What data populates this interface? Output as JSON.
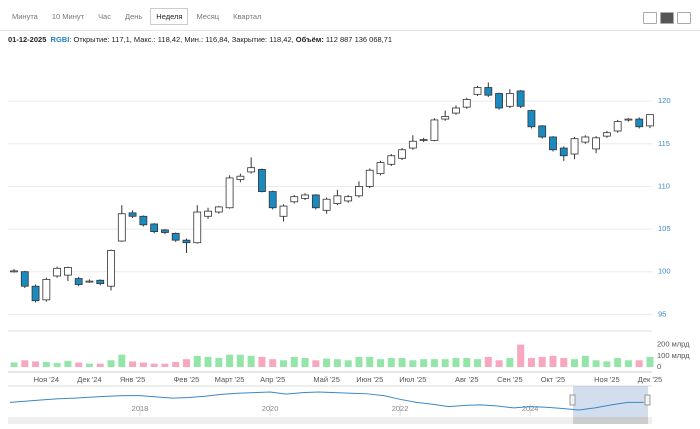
{
  "tabs": [
    {
      "label": "Минута"
    },
    {
      "label": "10 Минут"
    },
    {
      "label": "Час"
    },
    {
      "label": "День"
    },
    {
      "label": "Неделя",
      "active": true
    },
    {
      "label": "Месяц"
    },
    {
      "label": "Квартал"
    }
  ],
  "info": {
    "date": "01-12-2025",
    "ticker": "RGBI",
    "details": ": Открытие: 117,1, Макс.: 118,42, Мин.: 116,84, Закрытие: 118,42, ",
    "volume_label": "Объём:",
    "volume": " 112 887 136 068,71"
  },
  "chart_data": [
    {
      "type": "candlestick",
      "categories": [
        null,
        null,
        null,
        "Ноя '24",
        null,
        null,
        null,
        "Дек '24",
        null,
        null,
        null,
        "Янв '25",
        null,
        null,
        null,
        null,
        "Фев '25",
        null,
        null,
        null,
        "Март '25",
        null,
        null,
        null,
        "Апр '25",
        null,
        null,
        null,
        null,
        "Май '25",
        null,
        null,
        null,
        "Июн '25",
        null,
        null,
        null,
        "Июл '25",
        null,
        null,
        null,
        null,
        "Авг '25",
        null,
        null,
        null,
        "Сен '25",
        null,
        null,
        null,
        "Окт '25",
        null,
        null,
        null,
        null,
        "Ноя '25",
        null,
        null,
        null,
        "Дек '25"
      ],
      "open": [
        100.0,
        100.0,
        98.3,
        96.7,
        99.5,
        99.6,
        99.2,
        98.8,
        99.0,
        98.3,
        103.6,
        106.9,
        106.5,
        105.6,
        104.9,
        104.5,
        103.7,
        103.4,
        106.5,
        107.0,
        107.5,
        110.8,
        111.7,
        112.0,
        109.4,
        106.5,
        108.2,
        108.6,
        109.0,
        107.2,
        108.0,
        108.3,
        108.9,
        110.0,
        111.5,
        112.6,
        113.3,
        114.5,
        115.4,
        115.4,
        117.9,
        118.6,
        119.3,
        120.8,
        121.6,
        120.9,
        119.4,
        121.2,
        118.9,
        117.1,
        115.8,
        114.5,
        113.8,
        115.2,
        114.4,
        115.9,
        116.5,
        117.8,
        117.9,
        117.1
      ],
      "high": [
        100.3,
        100.1,
        98.5,
        99.3,
        100.6,
        100.6,
        99.4,
        99.1,
        99.1,
        102.6,
        107.8,
        107.2,
        106.6,
        105.7,
        105.0,
        104.6,
        103.9,
        107.8,
        107.5,
        107.7,
        111.3,
        111.5,
        113.4,
        112.1,
        109.5,
        107.9,
        109.0,
        109.2,
        109.1,
        108.7,
        109.6,
        109.0,
        110.6,
        112.1,
        113.0,
        113.8,
        114.5,
        116.0,
        115.7,
        118.0,
        118.9,
        119.5,
        120.4,
        121.8,
        122.2,
        121.0,
        121.4,
        121.3,
        119.0,
        117.2,
        115.9,
        114.7,
        115.8,
        116.0,
        115.9,
        116.5,
        117.8,
        118.0,
        118.1,
        118.42
      ],
      "low": [
        99.9,
        98.1,
        96.4,
        96.5,
        99.3,
        98.9,
        98.3,
        98.7,
        98.4,
        97.8,
        103.5,
        106.3,
        105.3,
        104.5,
        104.4,
        103.5,
        102.2,
        103.3,
        106.2,
        106.8,
        107.4,
        110.5,
        111.5,
        109.3,
        107.3,
        105.9,
        108.0,
        108.4,
        107.3,
        106.8,
        107.8,
        108.1,
        108.7,
        109.8,
        111.3,
        112.4,
        113.1,
        114.3,
        115.2,
        115.3,
        117.7,
        118.4,
        119.1,
        120.6,
        120.5,
        119.0,
        119.2,
        119.2,
        116.8,
        115.6,
        114.1,
        113.0,
        113.2,
        115.0,
        113.9,
        115.7,
        116.3,
        117.6,
        116.8,
        116.84
      ],
      "close": [
        100.1,
        98.3,
        96.6,
        99.1,
        100.4,
        100.5,
        98.5,
        98.9,
        98.6,
        102.5,
        106.8,
        106.5,
        105.5,
        104.7,
        104.6,
        103.7,
        103.4,
        107.0,
        107.1,
        107.6,
        111.0,
        111.2,
        112.2,
        109.4,
        107.5,
        107.7,
        108.8,
        109.0,
        107.5,
        108.5,
        108.9,
        108.8,
        110.0,
        111.9,
        112.8,
        113.6,
        114.3,
        115.3,
        115.5,
        117.8,
        118.2,
        119.2,
        120.2,
        121.6,
        120.7,
        119.2,
        120.9,
        119.4,
        117.0,
        115.8,
        114.3,
        113.6,
        115.6,
        115.8,
        115.7,
        116.3,
        117.6,
        117.9,
        117.0,
        118.42
      ],
      "ylim": [
        93.4,
        126
      ],
      "yticks": [
        95,
        100,
        105,
        110,
        115,
        120
      ],
      "grid": true,
      "up_color": "#ffffff",
      "down_color": "#1b8bbf"
    },
    {
      "type": "bar",
      "values": [
        40,
        60,
        50,
        45,
        35,
        55,
        40,
        30,
        30,
        60,
        110,
        50,
        40,
        30,
        30,
        45,
        70,
        100,
        90,
        80,
        110,
        110,
        100,
        90,
        70,
        60,
        90,
        80,
        60,
        75,
        70,
        60,
        90,
        90,
        70,
        80,
        80,
        60,
        70,
        70,
        70,
        80,
        80,
        70,
        90,
        60,
        80,
        200,
        80,
        90,
        100,
        80,
        70,
        100,
        60,
        50,
        80,
        60,
        60,
        90
      ],
      "ylim": [
        0,
        250
      ],
      "yticks": [
        0,
        {
          "value": 100,
          "label": "100 млрд"
        },
        {
          "value": 200,
          "label": "200 млрд"
        }
      ],
      "up_color": "#93e6a8",
      "down_color": "#f7a8be"
    },
    {
      "type": "line",
      "x": [
        2016.0,
        2016.25,
        2016.5,
        2016.75,
        2017.0,
        2017.25,
        2017.5,
        2017.75,
        2018.0,
        2018.25,
        2018.5,
        2018.75,
        2019.0,
        2019.25,
        2019.5,
        2019.75,
        2020.0,
        2020.25,
        2020.5,
        2020.75,
        2021.0,
        2021.25,
        2021.5,
        2021.75,
        2022.0,
        2022.25,
        2022.5,
        2022.75,
        2023.0,
        2023.25,
        2023.5,
        2023.75,
        2024.0,
        2024.25,
        2024.5,
        2024.75,
        2025.0,
        2025.25,
        2025.5,
        2025.75
      ],
      "values": [
        118,
        122,
        126,
        130,
        132,
        135,
        138,
        140,
        140,
        136,
        132,
        134,
        138,
        144,
        148,
        150,
        152,
        145,
        150,
        152,
        150,
        148,
        146,
        140,
        128,
        118,
        112,
        104,
        108,
        110,
        106,
        100,
        104,
        102,
        98,
        93,
        100,
        110,
        118,
        118
      ],
      "xlim": [
        2016,
        2025.86
      ],
      "ylim": [
        80,
        165
      ],
      "xticks": [
        2018,
        2020,
        2022,
        2024
      ],
      "color": "#3d87c4"
    }
  ]
}
